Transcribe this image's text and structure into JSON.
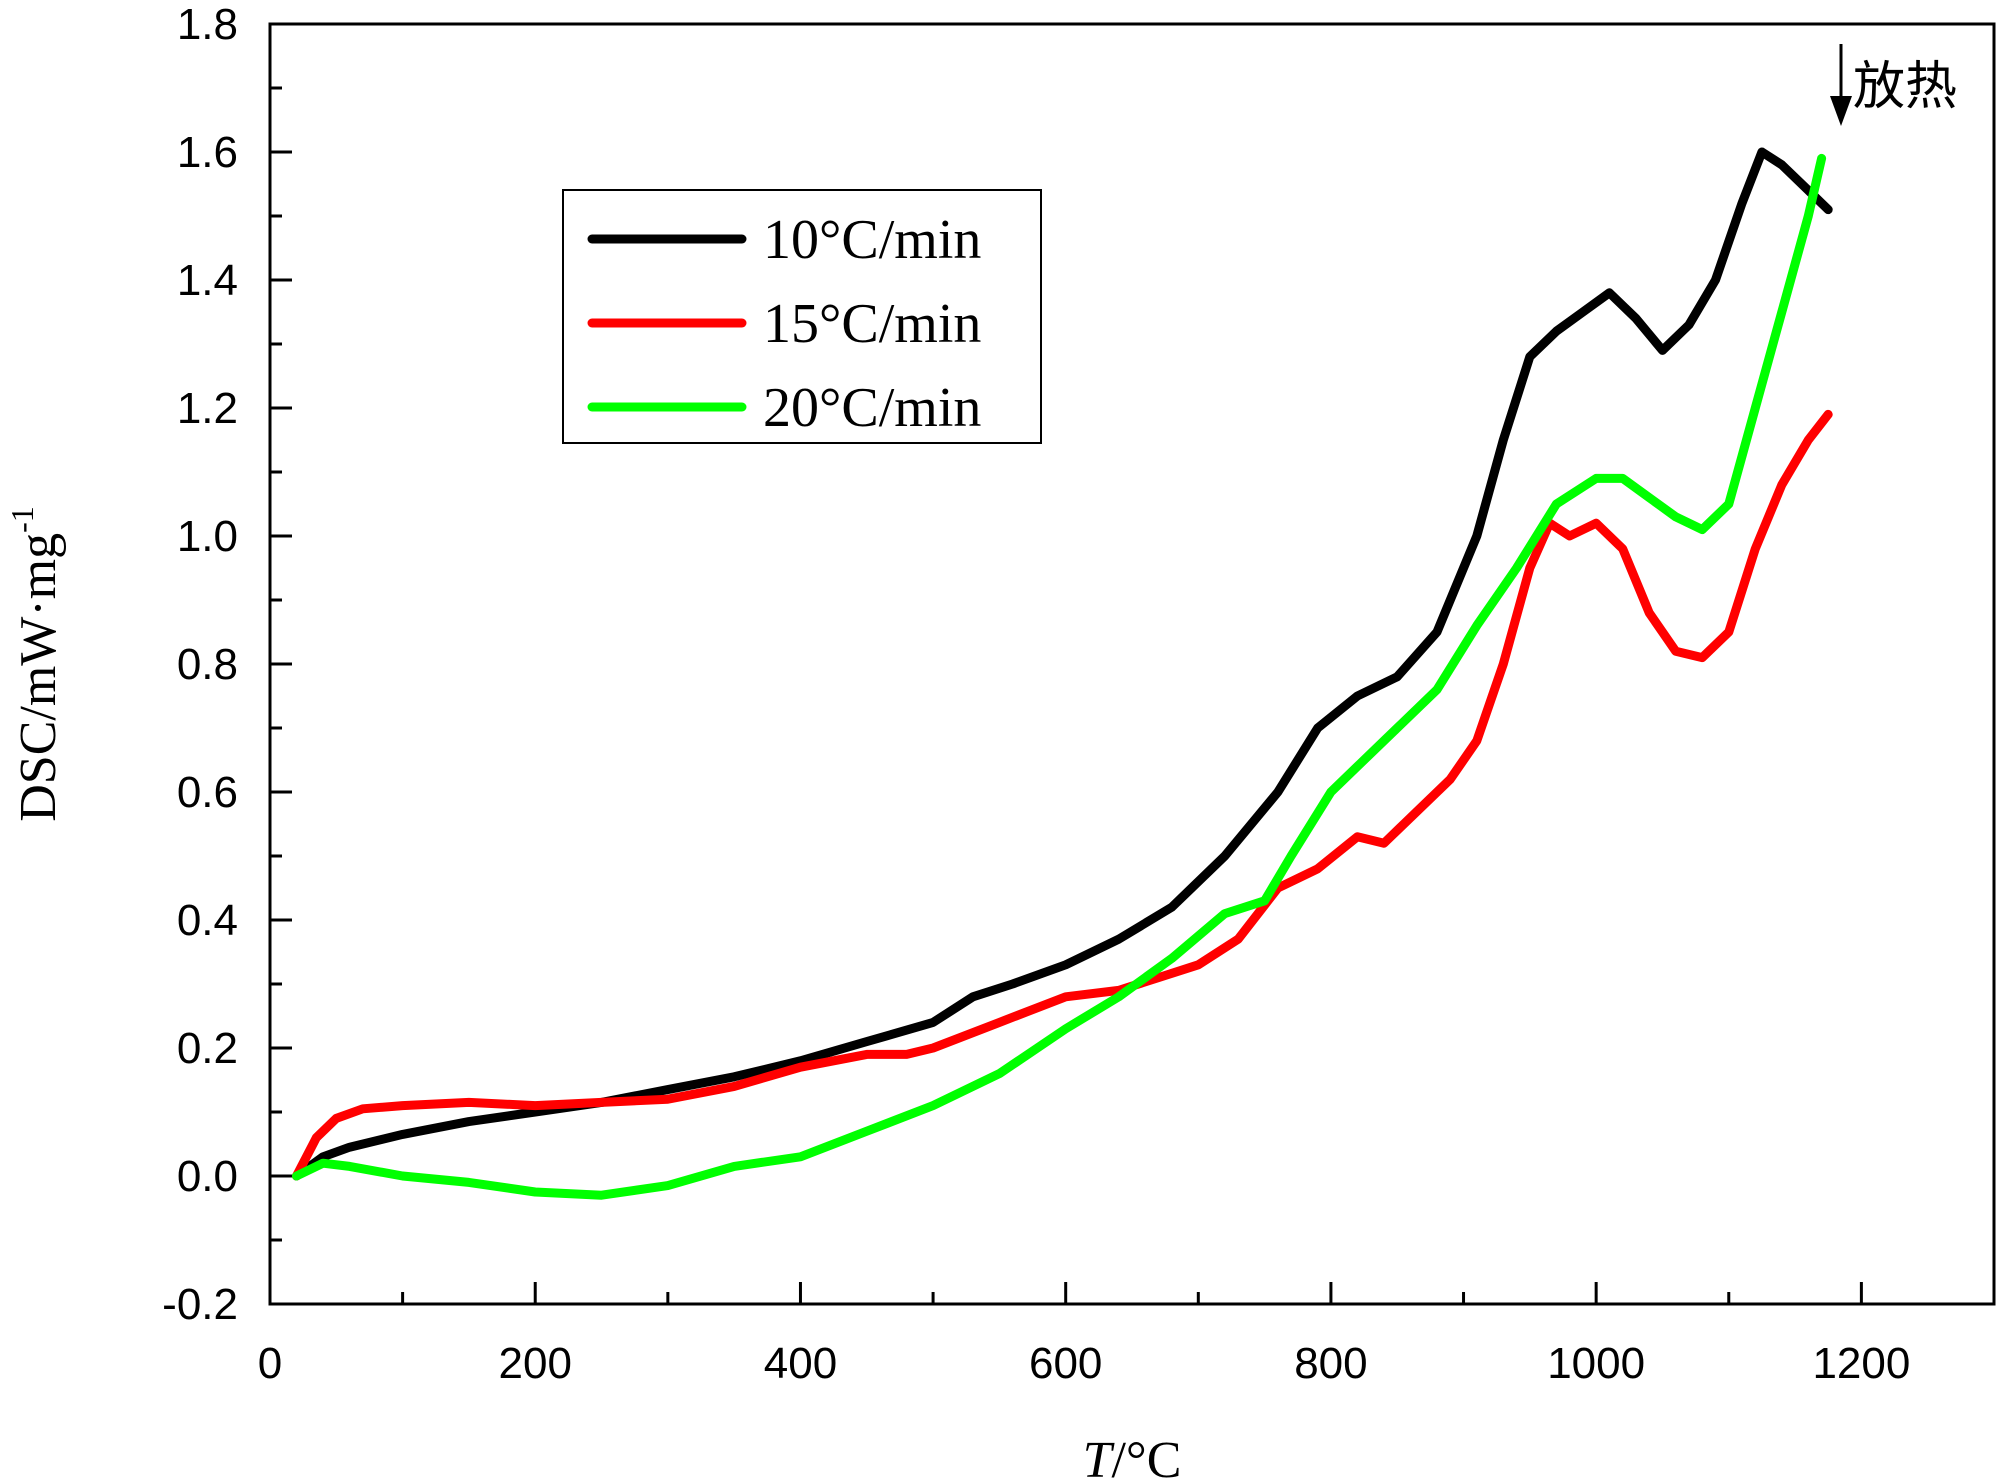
{
  "chart_data": {
    "type": "line",
    "xlabel_italic": "T",
    "xlabel_rest": "/°C",
    "ylabel_main": "DSC/mW·mg",
    "ylabel_sup": "-1",
    "xlim": [
      0,
      1300
    ],
    "ylim": [
      -0.2,
      1.8
    ],
    "x_ticks": [
      0,
      200,
      400,
      600,
      800,
      1000,
      1200
    ],
    "x_tick_labels": [
      "0",
      "200",
      "400",
      "600",
      "800",
      "1000",
      "1200"
    ],
    "y_ticks": [
      -0.2,
      0.0,
      0.2,
      0.4,
      0.6,
      0.8,
      1.0,
      1.2,
      1.4,
      1.6,
      1.8
    ],
    "y_tick_labels": [
      "-0.2",
      "0.0",
      "0.2",
      "0.4",
      "0.6",
      "0.8",
      "1.0",
      "1.2",
      "1.4",
      "1.6",
      "1.8"
    ],
    "grid": false,
    "legend_position": "upper-left",
    "annotation": {
      "text": "放热",
      "arrow": "down"
    },
    "series": [
      {
        "name": "10°C/min",
        "color": "#000000",
        "points": [
          [
            20,
            0.0
          ],
          [
            40,
            0.03
          ],
          [
            60,
            0.045
          ],
          [
            100,
            0.065
          ],
          [
            150,
            0.085
          ],
          [
            200,
            0.1
          ],
          [
            250,
            0.115
          ],
          [
            300,
            0.135
          ],
          [
            350,
            0.155
          ],
          [
            400,
            0.18
          ],
          [
            450,
            0.21
          ],
          [
            500,
            0.24
          ],
          [
            530,
            0.28
          ],
          [
            560,
            0.3
          ],
          [
            600,
            0.33
          ],
          [
            640,
            0.37
          ],
          [
            680,
            0.42
          ],
          [
            720,
            0.5
          ],
          [
            760,
            0.6
          ],
          [
            790,
            0.7
          ],
          [
            820,
            0.75
          ],
          [
            850,
            0.78
          ],
          [
            880,
            0.85
          ],
          [
            910,
            1.0
          ],
          [
            930,
            1.15
          ],
          [
            950,
            1.28
          ],
          [
            970,
            1.32
          ],
          [
            990,
            1.35
          ],
          [
            1010,
            1.38
          ],
          [
            1030,
            1.34
          ],
          [
            1050,
            1.29
          ],
          [
            1070,
            1.33
          ],
          [
            1090,
            1.4
          ],
          [
            1110,
            1.52
          ],
          [
            1125,
            1.6
          ],
          [
            1140,
            1.58
          ],
          [
            1160,
            1.54
          ],
          [
            1175,
            1.51
          ]
        ]
      },
      {
        "name": "15°C/min",
        "color": "#ff0000",
        "points": [
          [
            20,
            0.0
          ],
          [
            35,
            0.06
          ],
          [
            50,
            0.09
          ],
          [
            70,
            0.105
          ],
          [
            100,
            0.11
          ],
          [
            150,
            0.115
          ],
          [
            200,
            0.11
          ],
          [
            250,
            0.115
          ],
          [
            300,
            0.12
          ],
          [
            350,
            0.14
          ],
          [
            400,
            0.17
          ],
          [
            450,
            0.19
          ],
          [
            480,
            0.19
          ],
          [
            500,
            0.2
          ],
          [
            550,
            0.24
          ],
          [
            600,
            0.28
          ],
          [
            640,
            0.29
          ],
          [
            670,
            0.31
          ],
          [
            700,
            0.33
          ],
          [
            730,
            0.37
          ],
          [
            760,
            0.45
          ],
          [
            790,
            0.48
          ],
          [
            820,
            0.53
          ],
          [
            840,
            0.52
          ],
          [
            860,
            0.56
          ],
          [
            890,
            0.62
          ],
          [
            910,
            0.68
          ],
          [
            930,
            0.8
          ],
          [
            950,
            0.95
          ],
          [
            965,
            1.02
          ],
          [
            980,
            1.0
          ],
          [
            1000,
            1.02
          ],
          [
            1020,
            0.98
          ],
          [
            1040,
            0.88
          ],
          [
            1060,
            0.82
          ],
          [
            1080,
            0.81
          ],
          [
            1100,
            0.85
          ],
          [
            1120,
            0.98
          ],
          [
            1140,
            1.08
          ],
          [
            1160,
            1.15
          ],
          [
            1175,
            1.19
          ]
        ]
      },
      {
        "name": "20°C/min",
        "color": "#00ff00",
        "points": [
          [
            20,
            0.0
          ],
          [
            40,
            0.02
          ],
          [
            60,
            0.015
          ],
          [
            100,
            0.0
          ],
          [
            150,
            -0.01
          ],
          [
            200,
            -0.025
          ],
          [
            250,
            -0.03
          ],
          [
            300,
            -0.015
          ],
          [
            350,
            0.015
          ],
          [
            400,
            0.03
          ],
          [
            450,
            0.07
          ],
          [
            500,
            0.11
          ],
          [
            550,
            0.16
          ],
          [
            600,
            0.23
          ],
          [
            640,
            0.28
          ],
          [
            680,
            0.34
          ],
          [
            720,
            0.41
          ],
          [
            750,
            0.43
          ],
          [
            770,
            0.5
          ],
          [
            800,
            0.6
          ],
          [
            820,
            0.64
          ],
          [
            850,
            0.7
          ],
          [
            880,
            0.76
          ],
          [
            910,
            0.86
          ],
          [
            940,
            0.95
          ],
          [
            970,
            1.05
          ],
          [
            1000,
            1.09
          ],
          [
            1020,
            1.09
          ],
          [
            1040,
            1.06
          ],
          [
            1060,
            1.03
          ],
          [
            1080,
            1.01
          ],
          [
            1100,
            1.05
          ],
          [
            1120,
            1.2
          ],
          [
            1140,
            1.35
          ],
          [
            1160,
            1.5
          ],
          [
            1170,
            1.59
          ]
        ]
      }
    ]
  }
}
